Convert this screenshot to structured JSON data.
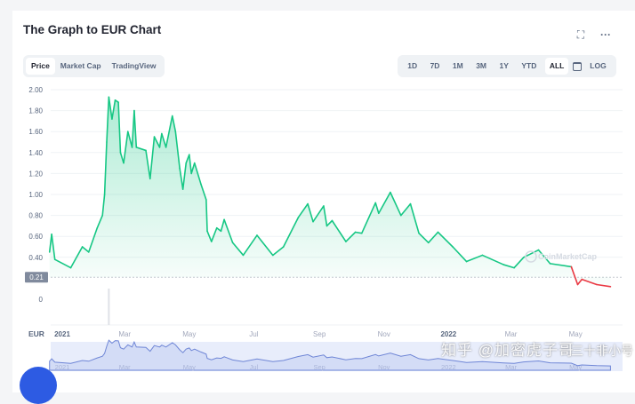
{
  "header": {
    "title": "The Graph to EUR Chart",
    "fullscreen_icon": "expand-icon",
    "more_icon": "more-horizontal-icon"
  },
  "tabs": [
    {
      "label": "Price",
      "active": true
    },
    {
      "label": "Market Cap",
      "active": false
    },
    {
      "label": "TradingView",
      "active": false
    }
  ],
  "ranges": [
    {
      "label": "1D"
    },
    {
      "label": "7D"
    },
    {
      "label": "1M"
    },
    {
      "label": "3M"
    },
    {
      "label": "1Y"
    },
    {
      "label": "YTD"
    },
    {
      "label": "ALL",
      "active": true
    },
    {
      "icon": "calendar-icon"
    },
    {
      "label": "LOG"
    }
  ],
  "watermark": {
    "brand": "CoinMarketCap",
    "overlay": "知乎 @加密虎子哥",
    "overlay2": "三十非小号"
  },
  "colors": {
    "up": "#16c784",
    "down": "#ea3943",
    "navigator": "#6f86d6"
  },
  "chart_data": {
    "type": "line",
    "currency_label": "EUR",
    "ylim": [
      0,
      2.0
    ],
    "y_ticks": [
      "2.00",
      "1.80",
      "1.60",
      "1.40",
      "1.20",
      "1.00",
      "0.80",
      "0.60",
      "0.40"
    ],
    "baseline_label": "0.21",
    "baseline": 0.21,
    "volume_axis_label": "0",
    "x_ticks": [
      {
        "label": "2021",
        "date": "2021-01-01"
      },
      {
        "label": "Mar",
        "date": "2021-03-01"
      },
      {
        "label": "May",
        "date": "2021-05-01"
      },
      {
        "label": "Jul",
        "date": "2021-07-01"
      },
      {
        "label": "Sep",
        "date": "2021-09-01"
      },
      {
        "label": "Nov",
        "date": "2021-11-01"
      },
      {
        "label": "2022",
        "date": "2022-01-01"
      },
      {
        "label": "Mar",
        "date": "2022-03-01"
      },
      {
        "label": "May",
        "date": "2022-05-01"
      }
    ],
    "grid": true,
    "series": [
      {
        "points": [
          [
            "2020-12-20",
            0.45
          ],
          [
            "2020-12-22",
            0.62
          ],
          [
            "2020-12-25",
            0.38
          ],
          [
            "2021-01-09",
            0.3
          ],
          [
            "2021-01-20",
            0.5
          ],
          [
            "2021-01-26",
            0.45
          ],
          [
            "2021-02-03",
            0.68
          ],
          [
            "2021-02-08",
            0.8
          ],
          [
            "2021-02-10",
            1.0
          ],
          [
            "2021-02-12",
            1.5
          ],
          [
            "2021-02-14",
            1.93
          ],
          [
            "2021-02-17",
            1.72
          ],
          [
            "2021-02-20",
            1.9
          ],
          [
            "2021-02-23",
            1.88
          ],
          [
            "2021-02-25",
            1.4
          ],
          [
            "2021-02-28",
            1.3
          ],
          [
            "2021-03-04",
            1.6
          ],
          [
            "2021-03-08",
            1.45
          ],
          [
            "2021-03-10",
            1.8
          ],
          [
            "2021-03-12",
            1.45
          ],
          [
            "2021-03-21",
            1.42
          ],
          [
            "2021-03-25",
            1.15
          ],
          [
            "2021-03-29",
            1.55
          ],
          [
            "2021-04-03",
            1.45
          ],
          [
            "2021-04-05",
            1.58
          ],
          [
            "2021-04-09",
            1.45
          ],
          [
            "2021-04-15",
            1.75
          ],
          [
            "2021-04-18",
            1.6
          ],
          [
            "2021-04-22",
            1.25
          ],
          [
            "2021-04-25",
            1.05
          ],
          [
            "2021-04-28",
            1.3
          ],
          [
            "2021-05-01",
            1.38
          ],
          [
            "2021-05-03",
            1.2
          ],
          [
            "2021-05-06",
            1.3
          ],
          [
            "2021-05-12",
            1.1
          ],
          [
            "2021-05-17",
            0.95
          ],
          [
            "2021-05-18",
            0.65
          ],
          [
            "2021-05-22",
            0.55
          ],
          [
            "2021-05-27",
            0.68
          ],
          [
            "2021-05-31",
            0.65
          ],
          [
            "2021-06-03",
            0.76
          ],
          [
            "2021-06-11",
            0.54
          ],
          [
            "2021-06-21",
            0.42
          ],
          [
            "2021-07-04",
            0.61
          ],
          [
            "2021-07-19",
            0.42
          ],
          [
            "2021-07-29",
            0.5
          ],
          [
            "2021-08-12",
            0.78
          ],
          [
            "2021-08-21",
            0.91
          ],
          [
            "2021-08-26",
            0.74
          ],
          [
            "2021-09-05",
            0.89
          ],
          [
            "2021-09-08",
            0.7
          ],
          [
            "2021-09-13",
            0.75
          ],
          [
            "2021-09-26",
            0.55
          ],
          [
            "2021-10-05",
            0.64
          ],
          [
            "2021-10-11",
            0.63
          ],
          [
            "2021-10-24",
            0.92
          ],
          [
            "2021-10-27",
            0.82
          ],
          [
            "2021-11-07",
            1.02
          ],
          [
            "2021-11-17",
            0.8
          ],
          [
            "2021-11-26",
            0.91
          ],
          [
            "2021-12-04",
            0.63
          ],
          [
            "2021-12-13",
            0.54
          ],
          [
            "2021-12-22",
            0.64
          ],
          [
            "2022-01-05",
            0.5
          ],
          [
            "2022-01-18",
            0.36
          ],
          [
            "2022-02-02",
            0.42
          ],
          [
            "2022-02-22",
            0.33
          ],
          [
            "2022-03-04",
            0.3
          ],
          [
            "2022-03-13",
            0.4
          ],
          [
            "2022-03-27",
            0.47
          ],
          [
            "2022-04-07",
            0.34
          ],
          [
            "2022-04-27",
            0.31
          ],
          [
            "2022-05-03",
            0.14
          ],
          [
            "2022-05-07",
            0.19
          ],
          [
            "2022-05-21",
            0.14
          ],
          [
            "2022-06-03",
            0.12
          ]
        ]
      }
    ],
    "volume_peak_date": "2021-02-14"
  }
}
